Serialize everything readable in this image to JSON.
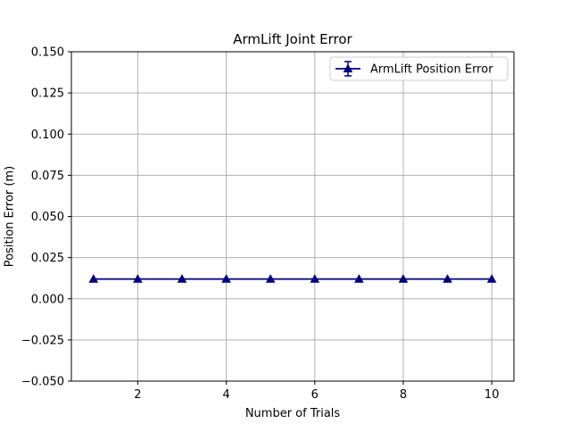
{
  "chart_data": {
    "type": "line",
    "title": "ArmLift Joint Error",
    "xlabel": "Number of Trials",
    "ylabel": "Position Error (m)",
    "xlim": [
      0.5,
      10.5
    ],
    "ylim": [
      -0.05,
      0.15
    ],
    "xticks": [
      2,
      4,
      6,
      8,
      10
    ],
    "xtick_labels": [
      "2",
      "4",
      "6",
      "8",
      "10"
    ],
    "yticks": [
      -0.05,
      -0.025,
      0.0,
      0.025,
      0.05,
      0.075,
      0.1,
      0.125,
      0.15
    ],
    "ytick_labels": [
      "−0.050",
      "−0.025",
      "0.000",
      "0.025",
      "0.050",
      "0.075",
      "0.100",
      "0.125",
      "0.150"
    ],
    "grid": true,
    "legend_position": "top-right",
    "series": [
      {
        "name": "ArmLift Position Error",
        "color": "#00007f",
        "marker": "triangle-up",
        "error_bars": true,
        "x": [
          1,
          2,
          3,
          4,
          5,
          6,
          7,
          8,
          9,
          10
        ],
        "y": [
          0.012,
          0.012,
          0.012,
          0.012,
          0.012,
          0.012,
          0.012,
          0.012,
          0.012,
          0.012
        ]
      }
    ]
  }
}
